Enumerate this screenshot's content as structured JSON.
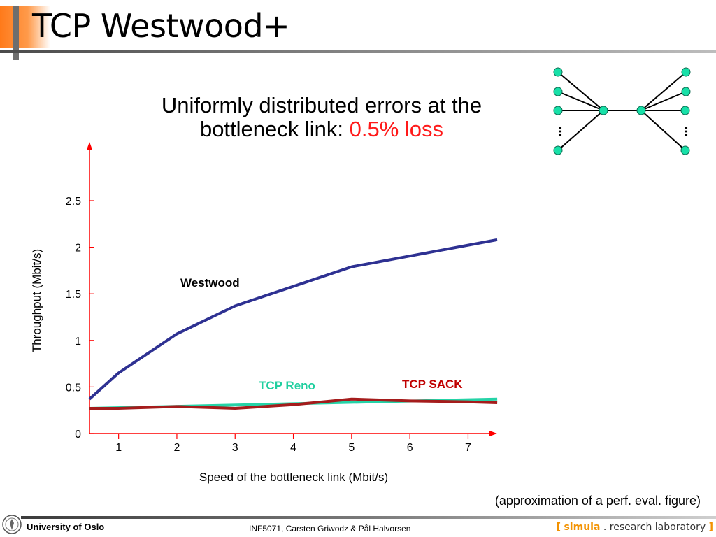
{
  "slide": {
    "title": "TCP Westwood+",
    "subtitle_line1": "Uniformly distributed errors at the",
    "subtitle_line2": "bottleneck link: ",
    "subtitle_highlight": "0.5% loss",
    "footnote": "(approximation of a perf. eval. figure)"
  },
  "footer": {
    "university": "University of Oslo",
    "course": "INF5071, Carsten Griwodz & Pål Halvorsen",
    "lab_open": "[",
    "lab_name": "simula",
    "lab_dot": ".",
    "lab_rest": "research laboratory",
    "lab_close": "]"
  },
  "topology": {
    "ellipsis_left": "…",
    "ellipsis_right": "…",
    "colors": {
      "node": "#18e0a8",
      "line": "#000000"
    }
  },
  "chart_data": {
    "type": "line",
    "xlabel": "Speed of the bottleneck link (Mbit/s)",
    "ylabel": "Throughput (Mbit/s)",
    "xlim": [
      0.5,
      7.5
    ],
    "ylim": [
      0,
      2.5
    ],
    "x_ticks": [
      1,
      2,
      3,
      4,
      5,
      6,
      7
    ],
    "y_ticks": [
      0,
      0.5,
      1,
      1.5,
      2,
      2.5
    ],
    "axis_color": "#ff0000",
    "series": [
      {
        "name": "Westwood",
        "color": "#2e3192",
        "label_color": "#000000",
        "x": [
          0.5,
          1,
          2,
          3,
          5,
          7.5
        ],
        "y": [
          0.37,
          0.65,
          1.07,
          1.37,
          1.79,
          2.08
        ]
      },
      {
        "name": "TCP Reno",
        "color": "#25d3a7",
        "label_color": "#1fcf9f",
        "x": [
          0.5,
          7.5
        ],
        "y": [
          0.27,
          0.37
        ]
      },
      {
        "name": "TCP SACK",
        "color": "#a51c1c",
        "label_color": "#c00000",
        "x": [
          0.5,
          1,
          2,
          3,
          4,
          5,
          6,
          7,
          7.5
        ],
        "y": [
          0.27,
          0.27,
          0.29,
          0.27,
          0.31,
          0.37,
          0.35,
          0.34,
          0.33
        ]
      }
    ]
  }
}
